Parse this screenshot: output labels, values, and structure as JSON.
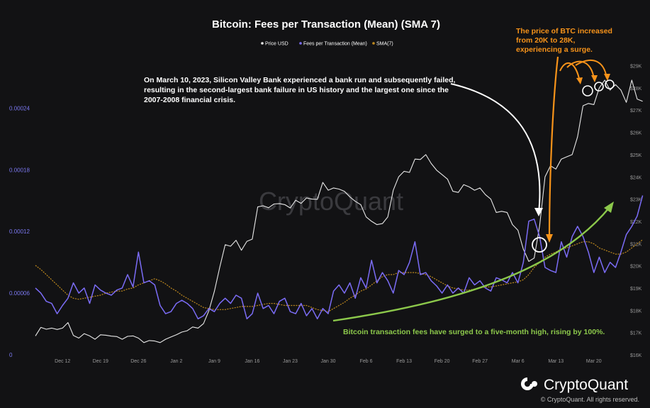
{
  "colors": {
    "background": "#121214",
    "price": "#e8e8e8",
    "fees": "#7b6cf6",
    "sma": "#c08a1e",
    "orange_annotation": "#f7931a",
    "green_annotation": "#8cc84b",
    "watermark": "#3a3a3e"
  },
  "icons": {
    "brand_logo": "cryptoquant-logo"
  },
  "watermark": "CryptoQuant",
  "brand": {
    "name": "CryptoQuant",
    "copyright": "© CryptoQuant. All rights reserved."
  },
  "annotations": {
    "svb": [
      "On March 10, 2023, Silicon Valley Bank experienced a bank run and subsequently failed,",
      "resulting in the second-largest bank failure in US history and the largest one since the",
      "2007-2008 financial crisis."
    ],
    "price": [
      "The price of BTC increased",
      "from 20K to 28K,",
      "experiencing a surge."
    ],
    "fees": "Bitcoin transaction fees have surged to a five-month high, rising by 100%."
  },
  "chart_data": {
    "type": "line",
    "title": "Bitcoin: Fees per Transaction (Mean) (SMA 7)",
    "legend": [
      "Price USD",
      "Fees per Transaction (Mean)",
      "SMA(7)"
    ],
    "legend_position": "top-center",
    "grid": false,
    "x_ticks": [
      "Dec 12",
      "Dec 19",
      "Dec 26",
      "Jan 2",
      "Jan 9",
      "Jan 16",
      "Jan 23",
      "Jan 30",
      "Feb 6",
      "Feb 13",
      "Feb 20",
      "Feb 27",
      "Mar 6",
      "Mar 13",
      "Mar 20"
    ],
    "x_range": [
      "2022-12-07",
      "2023-03-25"
    ],
    "y_left": {
      "ticks": [
        "0",
        "0.00006",
        "0.00012",
        "0.00018",
        "0.00024"
      ],
      "range": [
        0,
        0.00029
      ]
    },
    "y_right": {
      "ticks": [
        "$16K",
        "$17K",
        "$18K",
        "$19K",
        "$20K",
        "$21K",
        "$22K",
        "$23K",
        "$24K",
        "$25K",
        "$26K",
        "$27K",
        "$28K",
        "$29K"
      ],
      "range": [
        16000,
        29400
      ]
    },
    "series": [
      {
        "name": "Price USD",
        "axis": "right",
        "values": [
          16850,
          17230,
          17150,
          17200,
          17140,
          17200,
          17450,
          16870,
          16750,
          16950,
          16850,
          16700,
          16900,
          16880,
          16840,
          16820,
          16700,
          16830,
          16850,
          16750,
          16550,
          16640,
          16620,
          16550,
          16700,
          16800,
          16900,
          17020,
          17080,
          17250,
          17200,
          17400,
          17980,
          18850,
          19930,
          20950,
          20880,
          21150,
          20700,
          21100,
          21200,
          22650,
          22700,
          22610,
          22780,
          22800,
          22750,
          22600,
          22950,
          22810,
          23050,
          23000,
          22990,
          23750,
          23400,
          23500,
          23450,
          23350,
          23100,
          22900,
          22750,
          22200,
          22000,
          21850,
          21900,
          22200,
          23400,
          24000,
          24250,
          24200,
          24800,
          24780,
          25000,
          24600,
          24300,
          24100,
          23900,
          23350,
          23300,
          23650,
          23550,
          23400,
          23500,
          23200,
          23000,
          22400,
          22450,
          22400,
          21850,
          21600,
          20750,
          20200,
          20350,
          21800,
          24000,
          24500,
          24350,
          24800,
          24900,
          25000,
          25800,
          27200,
          27300,
          27250,
          28000,
          28350,
          27900,
          28150,
          27900,
          27350,
          28350,
          27500,
          27400
        ]
      },
      {
        "name": "Fees per Transaction (Mean)",
        "axis": "left",
        "values": [
          6.5e-05,
          6e-05,
          5.2e-05,
          5e-05,
          4e-05,
          4.8e-05,
          5.5e-05,
          7e-05,
          6e-05,
          6.5e-05,
          5e-05,
          6.8e-05,
          6.3e-05,
          6e-05,
          5.8e-05,
          6.3e-05,
          6.5e-05,
          7.8e-05,
          6.6e-05,
          0.0001,
          7e-05,
          7.2e-05,
          6.8e-05,
          4.8e-05,
          4e-05,
          4.2e-05,
          5e-05,
          5.3e-05,
          5e-05,
          4.5e-05,
          3.5e-05,
          3.8e-05,
          4.5e-05,
          4.2e-05,
          5e-05,
          5.5e-05,
          5e-05,
          5.8e-05,
          5.5e-05,
          3.5e-05,
          4e-05,
          6e-05,
          4.5e-05,
          4.8e-05,
          4e-05,
          5.2e-05,
          5.5e-05,
          4.2e-05,
          4e-05,
          5e-05,
          3.8e-05,
          4.5e-05,
          3.5e-05,
          4.5e-05,
          4e-05,
          6.2e-05,
          6.8e-05,
          6e-05,
          7e-05,
          5.5e-05,
          7.5e-05,
          6.5e-05,
          9.2e-05,
          7e-05,
          8e-05,
          7.2e-05,
          6e-05,
          8.2e-05,
          7.8e-05,
          9e-05,
          0.00011,
          7.8e-05,
          8e-05,
          7.2e-05,
          6.7e-05,
          6e-05,
          6.8e-05,
          6e-05,
          6.5e-05,
          6e-05,
          7.5e-05,
          6.8e-05,
          7.2e-05,
          6.5e-05,
          6.2e-05,
          7.5e-05,
          7.3e-05,
          7e-05,
          8e-05,
          7e-05,
          9e-05,
          0.00013,
          0.000132,
          0.000115,
          8.5e-05,
          8.2e-05,
          8e-05,
          0.00011,
          9.5e-05,
          0.000115,
          0.000125,
          0.000115,
          0.0001,
          8e-05,
          9.5e-05,
          8e-05,
          9e-05,
          8.5e-05,
          0.0001,
          0.000117,
          0.000125,
          0.000135,
          0.000155
        ]
      },
      {
        "name": "SMA(7)",
        "axis": "left",
        "values": [
          8.7e-05,
          8.3e-05,
          7.8e-05,
          7.3e-05,
          6.8e-05,
          6.3e-05,
          5.8e-05,
          5.5e-05,
          5.4e-05,
          5.5e-05,
          5.6e-05,
          5.7e-05,
          5.8e-05,
          6e-05,
          6.1e-05,
          6.2e-05,
          6.2e-05,
          6.4e-05,
          6.5e-05,
          6.8e-05,
          7e-05,
          7.2e-05,
          7.4e-05,
          7.2e-05,
          6.9e-05,
          6.5e-05,
          6.2e-05,
          5.8e-05,
          5.5e-05,
          5.2e-05,
          4.9e-05,
          4.6e-05,
          4.5e-05,
          4.4e-05,
          4.4e-05,
          4.4e-05,
          4.5e-05,
          4.6e-05,
          4.7e-05,
          4.7e-05,
          4.7e-05,
          4.8e-05,
          4.9e-05,
          5e-05,
          5e-05,
          4.9e-05,
          4.8e-05,
          4.8e-05,
          4.8e-05,
          4.8e-05,
          4.8e-05,
          4.6e-05,
          4.4e-05,
          4.3e-05,
          4.2e-05,
          4.5e-05,
          4.8e-05,
          5.1e-05,
          5.5e-05,
          5.8e-05,
          6.2e-05,
          6.4e-05,
          6.8e-05,
          7.2e-05,
          7.6e-05,
          7.8e-05,
          7.8e-05,
          8e-05,
          8e-05,
          8e-05,
          8e-05,
          7.9e-05,
          7.8e-05,
          7.6e-05,
          7.3e-05,
          7e-05,
          6.7e-05,
          6.5e-05,
          6.4e-05,
          6.3e-05,
          6.3e-05,
          6.4e-05,
          6.5e-05,
          6.6e-05,
          6.6e-05,
          6.7e-05,
          6.8e-05,
          6.9e-05,
          7e-05,
          7.1e-05,
          7.3e-05,
          7.8e-05,
          8.5e-05,
          9e-05,
          9.5e-05,
          9.8e-05,
          0.0001,
          0.000103,
          0.000104,
          0.000106,
          0.000108,
          0.00011,
          0.00011,
          0.000108,
          0.000104,
          0.000102,
          0.0001,
          9.8e-05,
          9.8e-05,
          0.0001,
          0.000104,
          0.000108,
          0.000112
        ]
      }
    ]
  }
}
